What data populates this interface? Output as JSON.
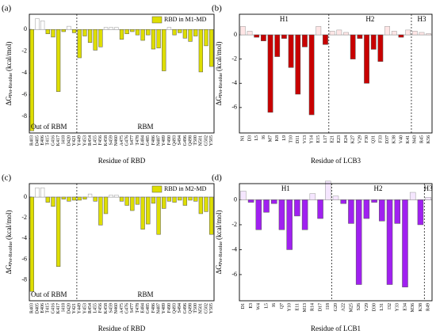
{
  "chart_data": [
    {
      "type": "bar",
      "panel_label": "(a)",
      "xlabel": "Residue of RBD",
      "ylabel": "ΔG",
      "ylabel_sub": "Per-Residue",
      "ylabel_unit": "(kcal/mol)",
      "categories": [
        "R403",
        "D405",
        "E406",
        "T415",
        "G416",
        "K417",
        "I418",
        "D420",
        "Y421",
        "Y449",
        "Y453",
        "R454",
        "L455",
        "F456",
        "K458",
        "S459",
        "N460",
        "A475",
        "G476",
        "S477",
        "T478",
        "E484",
        "G485",
        "F486",
        "N487",
        "Y489",
        "F490",
        "Q493",
        "S494",
        "G496",
        "Q498",
        "T500",
        "N501",
        "G502",
        "Y505"
      ],
      "series": [
        {
          "name": "RBD in M1-MD",
          "color": "#dede00",
          "positive_color": "#ffffff",
          "values": [
            -9.3,
            1.0,
            0.8,
            -0.4,
            -0.7,
            -5.7,
            -0.2,
            0.3,
            -0.3,
            -2.6,
            -0.6,
            -1.2,
            -1.9,
            -1.6,
            0.2,
            0.2,
            0.2,
            -0.9,
            -0.4,
            -0.2,
            -0.5,
            -1.0,
            -0.5,
            -1.8,
            -1.7,
            -3.8,
            0.2,
            -0.5,
            -0.3,
            -0.8,
            -1.1,
            -0.6,
            -3.9,
            -1.5,
            -3.4
          ]
        }
      ],
      "regions": [
        {
          "label": "Out of RBM",
          "from": "R403",
          "to": "Y421"
        },
        {
          "label": "RBM",
          "from": "Y449",
          "to": "Y505"
        }
      ],
      "region_label_position": "bottom",
      "legend": "upper right",
      "ylim": [
        -9.5,
        1.4
      ],
      "yticks": [
        0,
        -2,
        -4,
        -6,
        -8
      ]
    },
    {
      "type": "bar",
      "panel_label": "(b)",
      "xlabel": "Residue of LCB3",
      "ylabel": "ΔG",
      "ylabel_sub": "Per-Residue",
      "ylabel_unit": "(kcal/mol)",
      "categories": [
        "N1",
        "D3",
        "L5",
        "I6",
        "M7",
        "K8",
        "L9",
        "T10",
        "D11",
        "V13",
        "Y14",
        "E15",
        "L17",
        "E21",
        "E23",
        "E24",
        "K27",
        "V29",
        "F30",
        "Q31",
        "F33",
        "D37",
        "K38",
        "V40",
        "K41",
        "N43",
        "R45",
        "K56"
      ],
      "series": [
        {
          "color": "#c80000",
          "positive_color": "#ffe6e6",
          "values": [
            0.7,
            0.3,
            -0.2,
            -0.5,
            -6.4,
            -1.8,
            -0.3,
            -2.7,
            -4.9,
            -1.0,
            -6.6,
            0.7,
            -0.8,
            0.3,
            0.4,
            0.2,
            -2.0,
            -0.3,
            -4.0,
            -1.2,
            -2.2,
            0.7,
            0.3,
            -0.2,
            0.4,
            0.3,
            0.2,
            0.1
          ]
        }
      ],
      "regions": [
        {
          "label": "H1",
          "from": "N1",
          "to": "L17"
        },
        {
          "label": "H2",
          "from": "E21",
          "to": "K41"
        },
        {
          "label": "H3",
          "from": "N43",
          "to": "K56"
        }
      ],
      "region_label_position": "top",
      "ylim": [
        -8.1,
        1.7
      ],
      "yticks": [
        0,
        -2,
        -4,
        -6
      ]
    },
    {
      "type": "bar",
      "panel_label": "(c)",
      "xlabel": "Residue of RBD",
      "ylabel": "ΔG",
      "ylabel_sub": "Per-Residue",
      "ylabel_unit": "(kcal/mol)",
      "categories": [
        "R403",
        "D405",
        "E406",
        "T415",
        "G416",
        "K417",
        "I418",
        "D420",
        "Y421",
        "Y449",
        "Y453",
        "R454",
        "L455",
        "F456",
        "K458",
        "S459",
        "N460",
        "A475",
        "G476",
        "S477",
        "T478",
        "E484",
        "G485",
        "F486",
        "N487",
        "Y489",
        "F490",
        "Q493",
        "S494",
        "G496",
        "Q498",
        "T500",
        "N501",
        "G502",
        "Y505"
      ],
      "series": [
        {
          "name": "RBD in M2-MD",
          "color": "#dede00",
          "positive_color": "#ffffff",
          "values": [
            -9.1,
            0.9,
            0.9,
            -0.5,
            -0.9,
            -6.7,
            -0.2,
            -0.4,
            -0.3,
            -0.3,
            -0.2,
            0.3,
            -0.4,
            -2.7,
            -1.6,
            0.2,
            0.2,
            -0.4,
            -0.8,
            -1.3,
            -0.7,
            -3.1,
            -2.6,
            -0.6,
            -3.6,
            -1.1,
            -0.4,
            -0.5,
            -0.3,
            -0.8,
            -0.3,
            -0.4,
            -1.6,
            -1.4,
            -3.6
          ]
        }
      ],
      "regions": [
        {
          "label": "Out of RBM",
          "from": "R403",
          "to": "Y421"
        },
        {
          "label": "RBM",
          "from": "Y449",
          "to": "Y505"
        }
      ],
      "region_label_position": "bottom",
      "legend": "upper right",
      "ylim": [
        -10,
        1.3
      ],
      "yticks": [
        0,
        -2,
        -4,
        -6,
        -8
      ]
    },
    {
      "type": "bar",
      "panel_label": "(d)",
      "xlabel": "Residue of LCB1",
      "ylabel": "ΔG",
      "ylabel_sub": "Per-Residue",
      "ylabel_unit": "(kcal/mol)",
      "categories": [
        "D1",
        "E3",
        "W4",
        "L5",
        "I6",
        "Q7",
        "Y10",
        "E11",
        "M13",
        "R14",
        "D17",
        "I18",
        "G20",
        "A22",
        "M25",
        "S26",
        "V29",
        "D30",
        "L31",
        "I32",
        "Y33",
        "E34",
        "M36",
        "K38",
        "R49"
      ],
      "series": [
        {
          "color": "#a020f0",
          "positive_color": "#f5e6ff",
          "values": [
            0.7,
            -0.2,
            -2.4,
            -1.0,
            -0.3,
            -2.4,
            -4.0,
            -1.3,
            -2.4,
            0.5,
            -1.5,
            1.5,
            0.3,
            -0.3,
            -1.9,
            -6.8,
            -1.5,
            -0.2,
            -1.7,
            -6.8,
            -1.9,
            -7.0,
            0.6,
            -2.0,
            0.2
          ]
        }
      ],
      "regions": [
        {
          "label": "H1",
          "from": "D1",
          "to": "I18"
        },
        {
          "label": "H2",
          "from": "G20",
          "to": "K38"
        },
        {
          "label": "H3",
          "from": "R49",
          "to": "R49"
        }
      ],
      "region_label_position": "top",
      "ylim": [
        -8.1,
        1.3
      ],
      "yticks": [
        0,
        -2,
        -4,
        -6
      ]
    }
  ]
}
